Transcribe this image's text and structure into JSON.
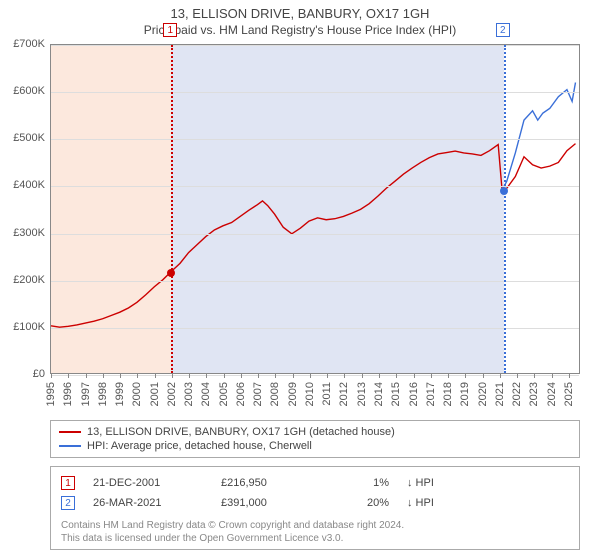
{
  "title": "13, ELLISON DRIVE, BANBURY, OX17 1GH",
  "subtitle": "Price paid vs. HM Land Registry's House Price Index (HPI)",
  "chart": {
    "type": "line",
    "x_start_year": 1995,
    "x_end_year": 2025.7,
    "x_ticks": [
      1995,
      1996,
      1997,
      1998,
      1999,
      2000,
      2001,
      2002,
      2003,
      2004,
      2005,
      2006,
      2007,
      2008,
      2009,
      2010,
      2011,
      2012,
      2013,
      2014,
      2015,
      2016,
      2017,
      2018,
      2019,
      2020,
      2021,
      2022,
      2023,
      2024,
      2025
    ],
    "ylim": [
      0,
      700000
    ],
    "y_ticks": [
      0,
      100000,
      200000,
      300000,
      400000,
      500000,
      600000,
      700000
    ],
    "y_tick_labels": [
      "£0",
      "£100K",
      "£200K",
      "£300K",
      "£400K",
      "£500K",
      "£600K",
      "£700K"
    ],
    "grid_color": "#dddddd",
    "border_color": "#888888",
    "shade_colors": [
      "#fce8dd",
      "#e0e5f3"
    ],
    "series": [
      {
        "id": "property",
        "label": "13, ELLISON DRIVE, BANBURY, OX17 1GH (detached house)",
        "color": "#cc0000",
        "width": 1.4,
        "data": [
          [
            1995.0,
            102000
          ],
          [
            1995.5,
            99000
          ],
          [
            1996.0,
            101000
          ],
          [
            1996.5,
            104000
          ],
          [
            1997.0,
            108000
          ],
          [
            1997.5,
            112000
          ],
          [
            1998.0,
            117000
          ],
          [
            1998.5,
            124000
          ],
          [
            1999.0,
            131000
          ],
          [
            1999.5,
            140000
          ],
          [
            2000.0,
            152000
          ],
          [
            2000.5,
            168000
          ],
          [
            2001.0,
            185000
          ],
          [
            2001.5,
            200000
          ],
          [
            2001.97,
            216950
          ],
          [
            2002.5,
            235000
          ],
          [
            2003.0,
            258000
          ],
          [
            2003.5,
            275000
          ],
          [
            2004.0,
            292000
          ],
          [
            2004.5,
            306000
          ],
          [
            2005.0,
            315000
          ],
          [
            2005.5,
            322000
          ],
          [
            2006.0,
            335000
          ],
          [
            2006.5,
            348000
          ],
          [
            2007.0,
            360000
          ],
          [
            2007.3,
            368000
          ],
          [
            2007.6,
            358000
          ],
          [
            2008.0,
            340000
          ],
          [
            2008.5,
            312000
          ],
          [
            2009.0,
            298000
          ],
          [
            2009.5,
            310000
          ],
          [
            2010.0,
            325000
          ],
          [
            2010.5,
            332000
          ],
          [
            2011.0,
            328000
          ],
          [
            2011.5,
            330000
          ],
          [
            2012.0,
            335000
          ],
          [
            2012.5,
            342000
          ],
          [
            2013.0,
            350000
          ],
          [
            2013.5,
            362000
          ],
          [
            2014.0,
            378000
          ],
          [
            2014.5,
            395000
          ],
          [
            2015.0,
            410000
          ],
          [
            2015.5,
            425000
          ],
          [
            2016.0,
            438000
          ],
          [
            2016.5,
            450000
          ],
          [
            2017.0,
            460000
          ],
          [
            2017.5,
            468000
          ],
          [
            2018.0,
            471000
          ],
          [
            2018.5,
            474000
          ],
          [
            2019.0,
            470000
          ],
          [
            2019.5,
            468000
          ],
          [
            2020.0,
            465000
          ],
          [
            2020.5,
            475000
          ],
          [
            2021.0,
            488000
          ],
          [
            2021.23,
            391000
          ],
          [
            2021.5,
            395000
          ],
          [
            2022.0,
            420000
          ],
          [
            2022.5,
            462000
          ],
          [
            2023.0,
            445000
          ],
          [
            2023.5,
            438000
          ],
          [
            2024.0,
            442000
          ],
          [
            2024.5,
            450000
          ],
          [
            2025.0,
            475000
          ],
          [
            2025.5,
            490000
          ]
        ]
      },
      {
        "id": "hpi",
        "label": "HPI: Average price, detached house, Cherwell",
        "color": "#3a6fd8",
        "width": 1.4,
        "start_year": 2021.23,
        "data": [
          [
            2021.23,
            391000
          ],
          [
            2021.5,
            410000
          ],
          [
            2022.0,
            470000
          ],
          [
            2022.5,
            540000
          ],
          [
            2023.0,
            560000
          ],
          [
            2023.3,
            540000
          ],
          [
            2023.6,
            555000
          ],
          [
            2024.0,
            565000
          ],
          [
            2024.5,
            590000
          ],
          [
            2025.0,
            605000
          ],
          [
            2025.3,
            580000
          ],
          [
            2025.5,
            620000
          ]
        ]
      }
    ],
    "markers": [
      {
        "n": "1",
        "year": 2001.97,
        "price": 216950,
        "color": "#cc0000",
        "shade_to": "start"
      },
      {
        "n": "2",
        "year": 2021.23,
        "price": 391000,
        "color": "#3a6fd8",
        "shade_to": "prev"
      }
    ]
  },
  "legend": {
    "items": [
      {
        "color": "#cc0000",
        "text": "13, ELLISON DRIVE, BANBURY, OX17 1GH (detached house)"
      },
      {
        "color": "#3a6fd8",
        "text": "HPI: Average price, detached house, Cherwell"
      }
    ]
  },
  "trades": [
    {
      "n": "1",
      "color": "#cc0000",
      "date": "21-DEC-2001",
      "price": "£216,950",
      "pct": "1%",
      "arrow": "↓",
      "vs": "HPI"
    },
    {
      "n": "2",
      "color": "#3a6fd8",
      "date": "26-MAR-2021",
      "price": "£391,000",
      "pct": "20%",
      "arrow": "↓",
      "vs": "HPI"
    }
  ],
  "credit_line1": "Contains HM Land Registry data © Crown copyright and database right 2024.",
  "credit_line2": "This data is licensed under the Open Government Licence v3.0."
}
